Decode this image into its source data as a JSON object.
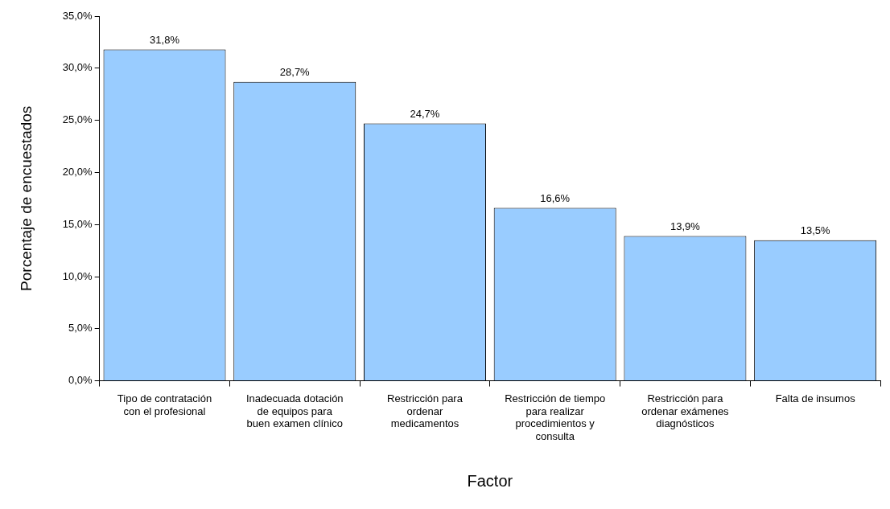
{
  "chart_data": {
    "type": "bar",
    "xlabel": "Factor",
    "ylabel": "Porcentaje de encuestados",
    "categories": [
      "Tipo de contratación con el profesional",
      "Inadecuada dotación de equipos para buen examen clínico",
      "Restricción para ordenar medicamentos",
      "Restricción de tiempo para realizar procedimientos y consulta",
      "Restricción para ordenar exámenes diagnósticos",
      "Falta de insumos"
    ],
    "values": [
      31.8,
      28.7,
      24.7,
      16.6,
      13.9,
      13.5
    ],
    "value_labels": [
      "31,8%",
      "28,7%",
      "24,7%",
      "16,6%",
      "13,9%",
      "13,5%"
    ],
    "color": "#99ccff",
    "ylim": [
      0,
      35
    ],
    "yticks": [
      {
        "value": 0,
        "label": "0,0%"
      },
      {
        "value": 5,
        "label": "5,0%"
      },
      {
        "value": 10,
        "label": "10,0%"
      },
      {
        "value": 15,
        "label": "15,0%"
      },
      {
        "value": 20,
        "label": "20,0%"
      },
      {
        "value": 25,
        "label": "25,0%"
      },
      {
        "value": 30,
        "label": "30,0%"
      },
      {
        "value": 35,
        "label": "35,0%"
      }
    ],
    "grid": false,
    "legend": false
  }
}
